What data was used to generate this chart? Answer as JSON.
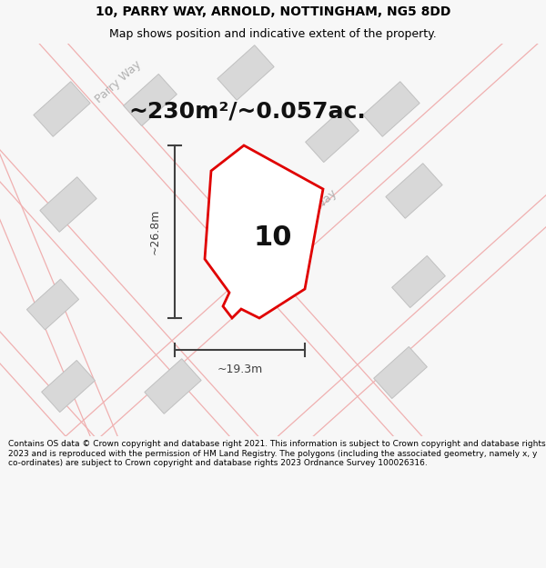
{
  "title": "10, PARRY WAY, ARNOLD, NOTTINGHAM, NG5 8DD",
  "subtitle": "Map shows position and indicative extent of the property.",
  "area_text": "~230m²/~0.057ac.",
  "width_label": "~19.3m",
  "height_label": "~26.8m",
  "property_number": "10",
  "footer": "Contains OS data © Crown copyright and database right 2021. This information is subject to Crown copyright and database rights 2023 and is reproduced with the permission of HM Land Registry. The polygons (including the associated geometry, namely x, y co-ordinates) are subject to Crown copyright and database rights 2023 Ordnance Survey 100026316.",
  "bg_color": "#f7f7f7",
  "map_bg": "#ffffff",
  "plot_color": "#e00000",
  "building_color": "#d8d8d8",
  "building_edge": "#c0c0c0",
  "road_line_color": "#f0b0b0",
  "road_label_color": "#b0b0b0",
  "dimension_color": "#404040",
  "title_color": "#000000",
  "footer_color": "#000000",
  "title_fontsize": 10,
  "subtitle_fontsize": 9,
  "area_fontsize": 18,
  "prop_num_fontsize": 22,
  "footer_fontsize": 6.5,
  "dim_label_fontsize": 9,
  "road_label_fontsize": 9
}
